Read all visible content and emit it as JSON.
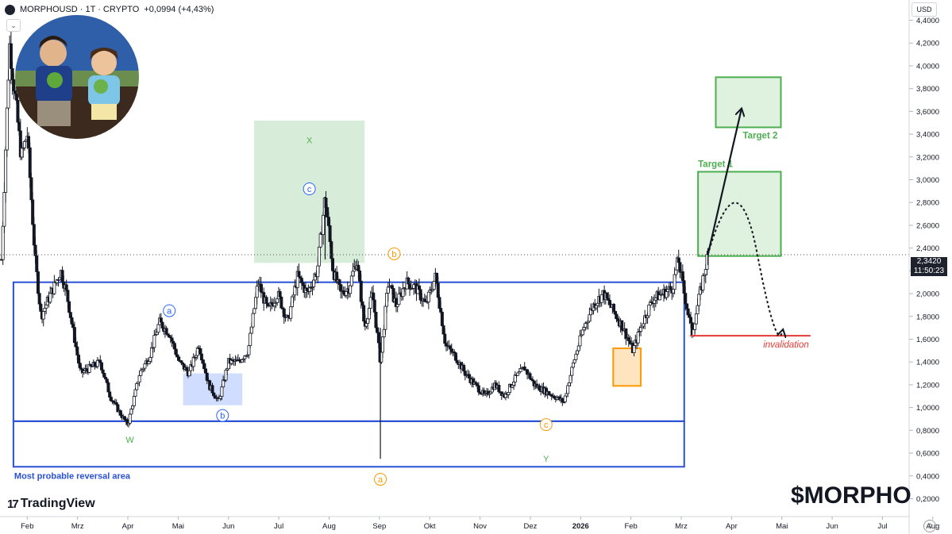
{
  "header": {
    "symbol": "MORPHOUSD · 1T · CRYPTO",
    "change": "+0,0994 (+4,43%)"
  },
  "currency": "USD",
  "current_price": {
    "price": "2,3420",
    "countdown": "11:50:23"
  },
  "branding": {
    "platform": "TradingView",
    "ticker_mark": "$MORPHO"
  },
  "chart_data": {
    "type": "candlestick",
    "y_ticks": [
      "4,4000",
      "4,2000",
      "4,0000",
      "3,8000",
      "3,6000",
      "3,4000",
      "3,2000",
      "3,0000",
      "2,8000",
      "2,6000",
      "2,4000",
      "2,2000",
      "2,0000",
      "1,8000",
      "1,6000",
      "1,4000",
      "1,2000",
      "1,0000",
      "0,8000",
      "0,6000",
      "0,4000",
      "0,2000"
    ],
    "y_tick_values": [
      4.4,
      4.2,
      4.0,
      3.8,
      3.6,
      3.4,
      3.2,
      3.0,
      2.8,
      2.6,
      2.4,
      2.2,
      2.0,
      1.8,
      1.6,
      1.4,
      1.2,
      1.0,
      0.8,
      0.6,
      0.4,
      0.2
    ],
    "x_ticks": [
      "Feb",
      "Mrz",
      "Apr",
      "Mai",
      "Jun",
      "Jul",
      "Aug",
      "Sep",
      "Okt",
      "Nov",
      "Dez",
      "2026",
      "Feb",
      "Mrz",
      "Apr",
      "Mai",
      "Jun",
      "Jul",
      "Aug"
    ],
    "price_path": [
      {
        "t": 0,
        "p": 2.3
      },
      {
        "t": 0.4,
        "p": 4.2
      },
      {
        "t": 1.0,
        "p": 3.2
      },
      {
        "t": 1.3,
        "p": 3.4
      },
      {
        "t": 1.7,
        "p": 2.3
      },
      {
        "t": 2.0,
        "p": 1.8
      },
      {
        "t": 2.5,
        "p": 2.0
      },
      {
        "t": 3.0,
        "p": 2.2
      },
      {
        "t": 3.3,
        "p": 2.0
      },
      {
        "t": 3.7,
        "p": 1.6
      },
      {
        "t": 4.0,
        "p": 1.3
      },
      {
        "t": 4.5,
        "p": 1.35
      },
      {
        "t": 5.0,
        "p": 1.4
      },
      {
        "t": 5.5,
        "p": 1.1
      },
      {
        "t": 6.0,
        "p": 0.95
      },
      {
        "t": 6.4,
        "p": 0.85
      },
      {
        "t": 7.0,
        "p": 1.3
      },
      {
        "t": 7.5,
        "p": 1.45
      },
      {
        "t": 8.0,
        "p": 1.75
      },
      {
        "t": 8.5,
        "p": 1.65
      },
      {
        "t": 9.0,
        "p": 1.4
      },
      {
        "t": 9.5,
        "p": 1.3
      },
      {
        "t": 10.0,
        "p": 1.55
      },
      {
        "t": 10.5,
        "p": 1.2
      },
      {
        "t": 11.0,
        "p": 1.05
      },
      {
        "t": 11.5,
        "p": 1.4
      },
      {
        "t": 12.0,
        "p": 1.4
      },
      {
        "t": 12.5,
        "p": 1.5
      },
      {
        "t": 13.0,
        "p": 2.1
      },
      {
        "t": 13.5,
        "p": 1.85
      },
      {
        "t": 14.0,
        "p": 2.0
      },
      {
        "t": 14.5,
        "p": 1.75
      },
      {
        "t": 15.0,
        "p": 2.15
      },
      {
        "t": 15.5,
        "p": 2.0
      },
      {
        "t": 16.0,
        "p": 2.2
      },
      {
        "t": 16.4,
        "p": 2.85
      },
      {
        "t": 16.8,
        "p": 2.2
      },
      {
        "t": 17.2,
        "p": 2.0
      },
      {
        "t": 17.6,
        "p": 2.05
      },
      {
        "t": 18.0,
        "p": 2.3
      },
      {
        "t": 18.4,
        "p": 1.7
      },
      {
        "t": 18.8,
        "p": 2.0
      },
      {
        "t": 19.2,
        "p": 1.4
      },
      {
        "t": 19.6,
        "p": 2.1
      },
      {
        "t": 20.0,
        "p": 1.9
      },
      {
        "t": 20.5,
        "p": 2.1
      },
      {
        "t": 21.0,
        "p": 2.05
      },
      {
        "t": 21.5,
        "p": 1.9
      },
      {
        "t": 22.0,
        "p": 2.15
      },
      {
        "t": 22.5,
        "p": 1.55
      },
      {
        "t": 23.0,
        "p": 1.45
      },
      {
        "t": 23.5,
        "p": 1.3
      },
      {
        "t": 24.0,
        "p": 1.2
      },
      {
        "t": 24.5,
        "p": 1.1
      },
      {
        "t": 25.0,
        "p": 1.2
      },
      {
        "t": 25.5,
        "p": 1.1
      },
      {
        "t": 26.0,
        "p": 1.25
      },
      {
        "t": 26.5,
        "p": 1.35
      },
      {
        "t": 27.0,
        "p": 1.2
      },
      {
        "t": 27.5,
        "p": 1.15
      },
      {
        "t": 28.0,
        "p": 1.1
      },
      {
        "t": 28.5,
        "p": 1.05
      },
      {
        "t": 29.0,
        "p": 1.4
      },
      {
        "t": 29.5,
        "p": 1.7
      },
      {
        "t": 30.0,
        "p": 1.9
      },
      {
        "t": 30.5,
        "p": 2.0
      },
      {
        "t": 31.0,
        "p": 1.85
      },
      {
        "t": 31.5,
        "p": 1.7
      },
      {
        "t": 32.0,
        "p": 1.5
      },
      {
        "t": 32.5,
        "p": 1.75
      },
      {
        "t": 33.0,
        "p": 1.95
      },
      {
        "t": 33.5,
        "p": 2.0
      },
      {
        "t": 34.0,
        "p": 2.05
      },
      {
        "t": 34.3,
        "p": 2.3
      },
      {
        "t": 34.6,
        "p": 2.0
      },
      {
        "t": 35.0,
        "p": 1.65
      },
      {
        "t": 35.4,
        "p": 2.0
      },
      {
        "t": 35.8,
        "p": 2.342
      }
    ],
    "boxes": [
      {
        "name": "reversal-area-upper",
        "t0": 0.6,
        "t1": 34.6,
        "p0": 2.1,
        "p1": 0.88,
        "style": "blue-outline"
      },
      {
        "name": "reversal-area-lower",
        "t0": 0.6,
        "t1": 34.6,
        "p0": 0.88,
        "p1": 0.48,
        "style": "blue-outline"
      },
      {
        "name": "wave-x-zone",
        "t0": 12.8,
        "t1": 18.4,
        "p0": 3.52,
        "p1": 2.27,
        "style": "green-fill"
      },
      {
        "name": "wave-b-zone",
        "t0": 9.2,
        "t1": 12.2,
        "p0": 1.3,
        "p1": 1.02,
        "style": "blue-fill"
      },
      {
        "name": "orange-zone",
        "t0": 31.0,
        "t1": 32.4,
        "p0": 1.52,
        "p1": 1.19,
        "style": "orange-fill"
      },
      {
        "name": "target-1-box",
        "t0": 35.3,
        "t1": 39.5,
        "p0": 3.07,
        "p1": 2.33,
        "style": "green-box"
      },
      {
        "name": "target-2-box",
        "t0": 36.2,
        "t1": 39.5,
        "p0": 3.9,
        "p1": 3.46,
        "style": "green-box"
      }
    ],
    "invalidation": {
      "t0": 34.9,
      "t1": 41.0,
      "p": 1.63
    },
    "labels": [
      {
        "text": "X",
        "t": 15.6,
        "p": 3.35,
        "color": "#4caf50",
        "circle": false
      },
      {
        "text": "c",
        "t": 15.6,
        "p": 2.92,
        "color": "#2962ff",
        "circle": true
      },
      {
        "text": "a",
        "t": 8.5,
        "p": 1.85,
        "color": "#2962ff",
        "circle": true
      },
      {
        "text": "b",
        "t": 11.2,
        "p": 0.93,
        "color": "#2962ff",
        "circle": true
      },
      {
        "text": "W",
        "t": 6.5,
        "p": 0.72,
        "color": "#4caf50",
        "circle": false
      },
      {
        "text": "b",
        "t": 19.9,
        "p": 2.35,
        "color": "#ff9800",
        "circle": true
      },
      {
        "text": "a",
        "t": 19.2,
        "p": 0.37,
        "color": "#ff9800",
        "circle": true
      },
      {
        "text": "c",
        "t": 27.6,
        "p": 0.85,
        "color": "#ff9800",
        "circle": true
      },
      {
        "text": "Y",
        "t": 27.6,
        "p": 0.55,
        "color": "#4caf50",
        "circle": false
      }
    ],
    "texts": {
      "target_1": "Target 1",
      "target_2": "Target 2",
      "invalidation": "invalidation",
      "reversal_area": "Most probable reversal area"
    },
    "ylim": [
      0.05,
      4.55
    ],
    "grid": false
  }
}
